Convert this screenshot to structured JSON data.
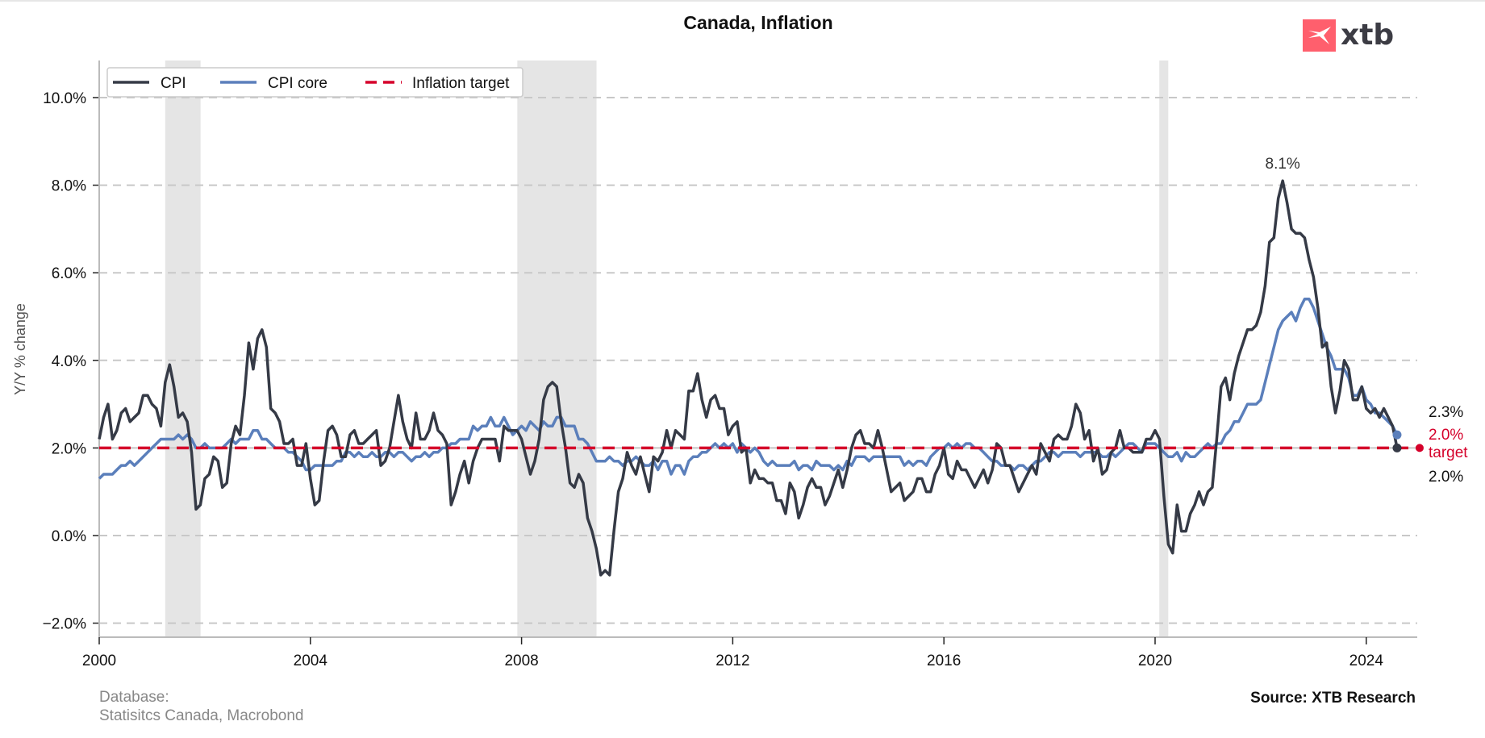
{
  "chart_data": {
    "type": "line",
    "title": "Canada, Inflation",
    "xlabel": "",
    "ylabel": "Y/Y % change",
    "xlim": [
      2000.0,
      2025.0
    ],
    "ylim": [
      -2.3,
      10.9
    ],
    "x_ticks": [
      2000,
      2004,
      2008,
      2012,
      2016,
      2020,
      2024
    ],
    "x_tick_labels": [
      "2000",
      "2004",
      "2008",
      "2012",
      "2016",
      "2020",
      "2024"
    ],
    "y_ticks": [
      -2,
      0,
      2,
      4,
      6,
      8,
      10
    ],
    "y_tick_labels": [
      "−2.0%",
      "0.0%",
      "2.0%",
      "4.0%",
      "6.0%",
      "8.0%",
      "10.0%"
    ],
    "grid": "horizontal-dashed",
    "legend_position": "top-left",
    "start": "2000-01",
    "frequency": "monthly",
    "recession_bands": [
      {
        "start": 2001.25,
        "end": 2001.92
      },
      {
        "start": 2007.92,
        "end": 2009.42
      },
      {
        "start": 2020.08,
        "end": 2020.25
      }
    ],
    "series": [
      {
        "name": "CPI",
        "color": "#353a46",
        "style": "solid",
        "values": [
          2.2,
          2.7,
          3.0,
          2.2,
          2.4,
          2.8,
          2.9,
          2.6,
          2.7,
          2.8,
          3.2,
          3.2,
          3.0,
          2.9,
          2.5,
          3.5,
          3.9,
          3.4,
          2.7,
          2.8,
          2.6,
          1.9,
          0.6,
          0.7,
          1.3,
          1.4,
          1.8,
          1.7,
          1.1,
          1.2,
          2.1,
          2.5,
          2.3,
          3.2,
          4.4,
          3.8,
          4.5,
          4.7,
          4.3,
          2.9,
          2.8,
          2.6,
          2.1,
          2.1,
          2.2,
          1.6,
          1.6,
          2.1,
          1.3,
          0.7,
          0.8,
          1.7,
          2.4,
          2.5,
          2.3,
          1.8,
          1.8,
          2.3,
          2.4,
          2.1,
          2.1,
          2.2,
          2.3,
          2.4,
          1.6,
          1.7,
          2.0,
          2.6,
          3.2,
          2.6,
          2.2,
          2.0,
          2.8,
          2.2,
          2.2,
          2.4,
          2.8,
          2.4,
          2.3,
          2.1,
          0.7,
          1.0,
          1.4,
          1.7,
          1.2,
          1.7,
          2.0,
          2.2,
          2.2,
          2.2,
          2.2,
          1.7,
          2.5,
          2.4,
          2.4,
          2.4,
          2.2,
          1.8,
          1.4,
          1.7,
          2.2,
          3.1,
          3.4,
          3.5,
          3.4,
          2.6,
          2.0,
          1.2,
          1.1,
          1.4,
          1.2,
          0.4,
          0.1,
          -0.3,
          -0.9,
          -0.8,
          -0.9,
          0.1,
          1.0,
          1.3,
          1.9,
          1.6,
          1.4,
          1.8,
          1.4,
          1.0,
          1.8,
          1.7,
          1.9,
          2.4,
          2.0,
          2.4,
          2.3,
          2.2,
          3.3,
          3.3,
          3.7,
          3.1,
          2.7,
          3.1,
          3.2,
          2.9,
          2.9,
          2.3,
          2.5,
          2.6,
          1.9,
          2.0,
          1.2,
          1.5,
          1.3,
          1.3,
          1.2,
          1.2,
          0.8,
          0.8,
          0.5,
          1.2,
          1.0,
          0.4,
          0.7,
          1.1,
          1.3,
          1.1,
          1.1,
          0.7,
          0.9,
          1.2,
          1.5,
          1.1,
          1.5,
          2.0,
          2.3,
          2.4,
          2.1,
          2.1,
          2.0,
          2.4,
          2.0,
          1.5,
          1.0,
          1.1,
          1.2,
          0.8,
          0.9,
          1.0,
          1.3,
          1.3,
          1.0,
          1.0,
          1.4,
          1.6,
          2.0,
          1.4,
          1.3,
          1.7,
          1.5,
          1.5,
          1.3,
          1.1,
          1.3,
          1.5,
          1.2,
          1.5,
          2.1,
          2.0,
          1.6,
          1.6,
          1.3,
          1.0,
          1.2,
          1.4,
          1.6,
          1.4,
          2.1,
          1.9,
          1.7,
          2.2,
          2.3,
          2.2,
          2.2,
          2.5,
          3.0,
          2.8,
          2.2,
          2.4,
          1.7,
          2.0,
          1.4,
          1.5,
          1.9,
          2.0,
          2.4,
          2.0,
          2.0,
          1.9,
          1.9,
          1.9,
          2.2,
          2.2,
          2.4,
          2.2,
          0.9,
          -0.2,
          -0.4,
          0.7,
          0.1,
          0.1,
          0.5,
          0.7,
          1.0,
          0.7,
          1.0,
          1.1,
          2.2,
          3.4,
          3.6,
          3.1,
          3.7,
          4.1,
          4.4,
          4.7,
          4.7,
          4.8,
          5.1,
          5.7,
          6.7,
          6.8,
          7.7,
          8.1,
          7.6,
          7.0,
          6.9,
          6.9,
          6.8,
          6.3,
          5.9,
          5.2,
          4.3,
          4.4,
          3.4,
          2.8,
          3.3,
          4.0,
          3.8,
          3.1,
          3.1,
          3.4,
          2.9,
          2.8,
          2.9,
          2.7,
          2.9,
          2.7,
          2.5,
          2.0
        ],
        "last_value_label": "2.0%"
      },
      {
        "name": "CPI core",
        "color": "#5b7fbb",
        "style": "solid",
        "values": [
          1.3,
          1.4,
          1.4,
          1.4,
          1.5,
          1.6,
          1.6,
          1.7,
          1.6,
          1.7,
          1.8,
          1.9,
          2.0,
          2.1,
          2.2,
          2.2,
          2.2,
          2.2,
          2.3,
          2.2,
          2.3,
          2.2,
          2.0,
          2.0,
          2.1,
          2.0,
          2.0,
          2.0,
          2.0,
          2.1,
          2.2,
          2.1,
          2.2,
          2.2,
          2.2,
          2.4,
          2.4,
          2.2,
          2.2,
          2.1,
          2.0,
          2.0,
          2.0,
          1.9,
          1.9,
          1.8,
          1.7,
          1.5,
          1.5,
          1.6,
          1.6,
          1.6,
          1.6,
          1.6,
          1.7,
          1.7,
          1.9,
          1.9,
          1.8,
          1.9,
          1.8,
          1.8,
          1.9,
          1.8,
          1.8,
          1.9,
          1.9,
          1.8,
          1.9,
          1.9,
          1.8,
          1.7,
          1.8,
          1.8,
          1.9,
          1.8,
          1.9,
          1.9,
          2.0,
          2.0,
          2.1,
          2.1,
          2.2,
          2.2,
          2.2,
          2.5,
          2.4,
          2.5,
          2.5,
          2.7,
          2.5,
          2.5,
          2.7,
          2.5,
          2.3,
          2.4,
          2.5,
          2.4,
          2.6,
          2.5,
          2.4,
          2.6,
          2.5,
          2.5,
          2.7,
          2.7,
          2.5,
          2.5,
          2.5,
          2.2,
          2.2,
          2.1,
          1.9,
          1.7,
          1.7,
          1.7,
          1.8,
          1.7,
          1.7,
          1.6,
          1.7,
          1.7,
          1.8,
          1.7,
          1.6,
          1.6,
          1.7,
          1.5,
          1.7,
          1.7,
          1.4,
          1.6,
          1.6,
          1.4,
          1.7,
          1.8,
          1.8,
          1.9,
          1.9,
          2.0,
          2.1,
          2.0,
          2.1,
          2.0,
          2.1,
          1.9,
          2.1,
          2.0,
          1.9,
          2.0,
          1.9,
          1.7,
          1.6,
          1.7,
          1.6,
          1.6,
          1.6,
          1.6,
          1.7,
          1.5,
          1.6,
          1.6,
          1.5,
          1.7,
          1.6,
          1.6,
          1.6,
          1.5,
          1.6,
          1.5,
          1.7,
          1.6,
          1.8,
          1.8,
          1.8,
          1.7,
          1.8,
          1.8,
          1.8,
          1.8,
          1.8,
          1.8,
          1.8,
          1.6,
          1.7,
          1.6,
          1.7,
          1.7,
          1.6,
          1.8,
          1.9,
          2.0,
          2.0,
          2.1,
          2.0,
          2.1,
          2.0,
          2.1,
          2.1,
          2.0,
          2.0,
          1.9,
          1.8,
          1.7,
          1.7,
          1.6,
          1.6,
          1.6,
          1.5,
          1.6,
          1.6,
          1.5,
          1.6,
          1.7,
          1.7,
          1.8,
          1.9,
          1.9,
          1.8,
          1.9,
          1.9,
          1.9,
          1.9,
          1.8,
          1.9,
          1.9,
          1.9,
          1.9,
          1.8,
          1.8,
          1.9,
          1.8,
          1.9,
          2.0,
          2.1,
          2.1,
          2.0,
          1.9,
          2.1,
          2.1,
          2.1,
          2.0,
          1.9,
          1.8,
          1.8,
          1.9,
          1.7,
          1.9,
          1.8,
          1.8,
          1.9,
          2.0,
          2.1,
          2.0,
          2.1,
          2.1,
          2.3,
          2.4,
          2.6,
          2.6,
          2.8,
          3.0,
          3.0,
          3.0,
          3.1,
          3.5,
          3.9,
          4.3,
          4.7,
          4.9,
          5.0,
          5.1,
          4.9,
          5.2,
          5.4,
          5.4,
          5.2,
          4.9,
          4.6,
          4.3,
          4.1,
          3.8,
          3.8,
          3.8,
          3.6,
          3.2,
          3.2,
          3.4,
          3.1,
          3.0,
          2.8,
          2.8,
          2.7,
          2.6,
          2.5,
          2.3
        ],
        "last_value_label": "2.3%"
      },
      {
        "name": "Inflation target",
        "color": "#d5002a",
        "style": "dashed",
        "constant": 2.0,
        "last_value_label": "2.0%",
        "last_value_sublabel": "target"
      }
    ],
    "annotations": [
      {
        "text": "8.1%",
        "x": "2022-06",
        "y": 8.1
      }
    ],
    "footnote_lines": [
      "Database:",
      "Statisitcs Canada, Macrobond"
    ],
    "source": "Source: XTB Research"
  },
  "logo": {
    "text": "xtb",
    "color": "#ff5a6a"
  }
}
